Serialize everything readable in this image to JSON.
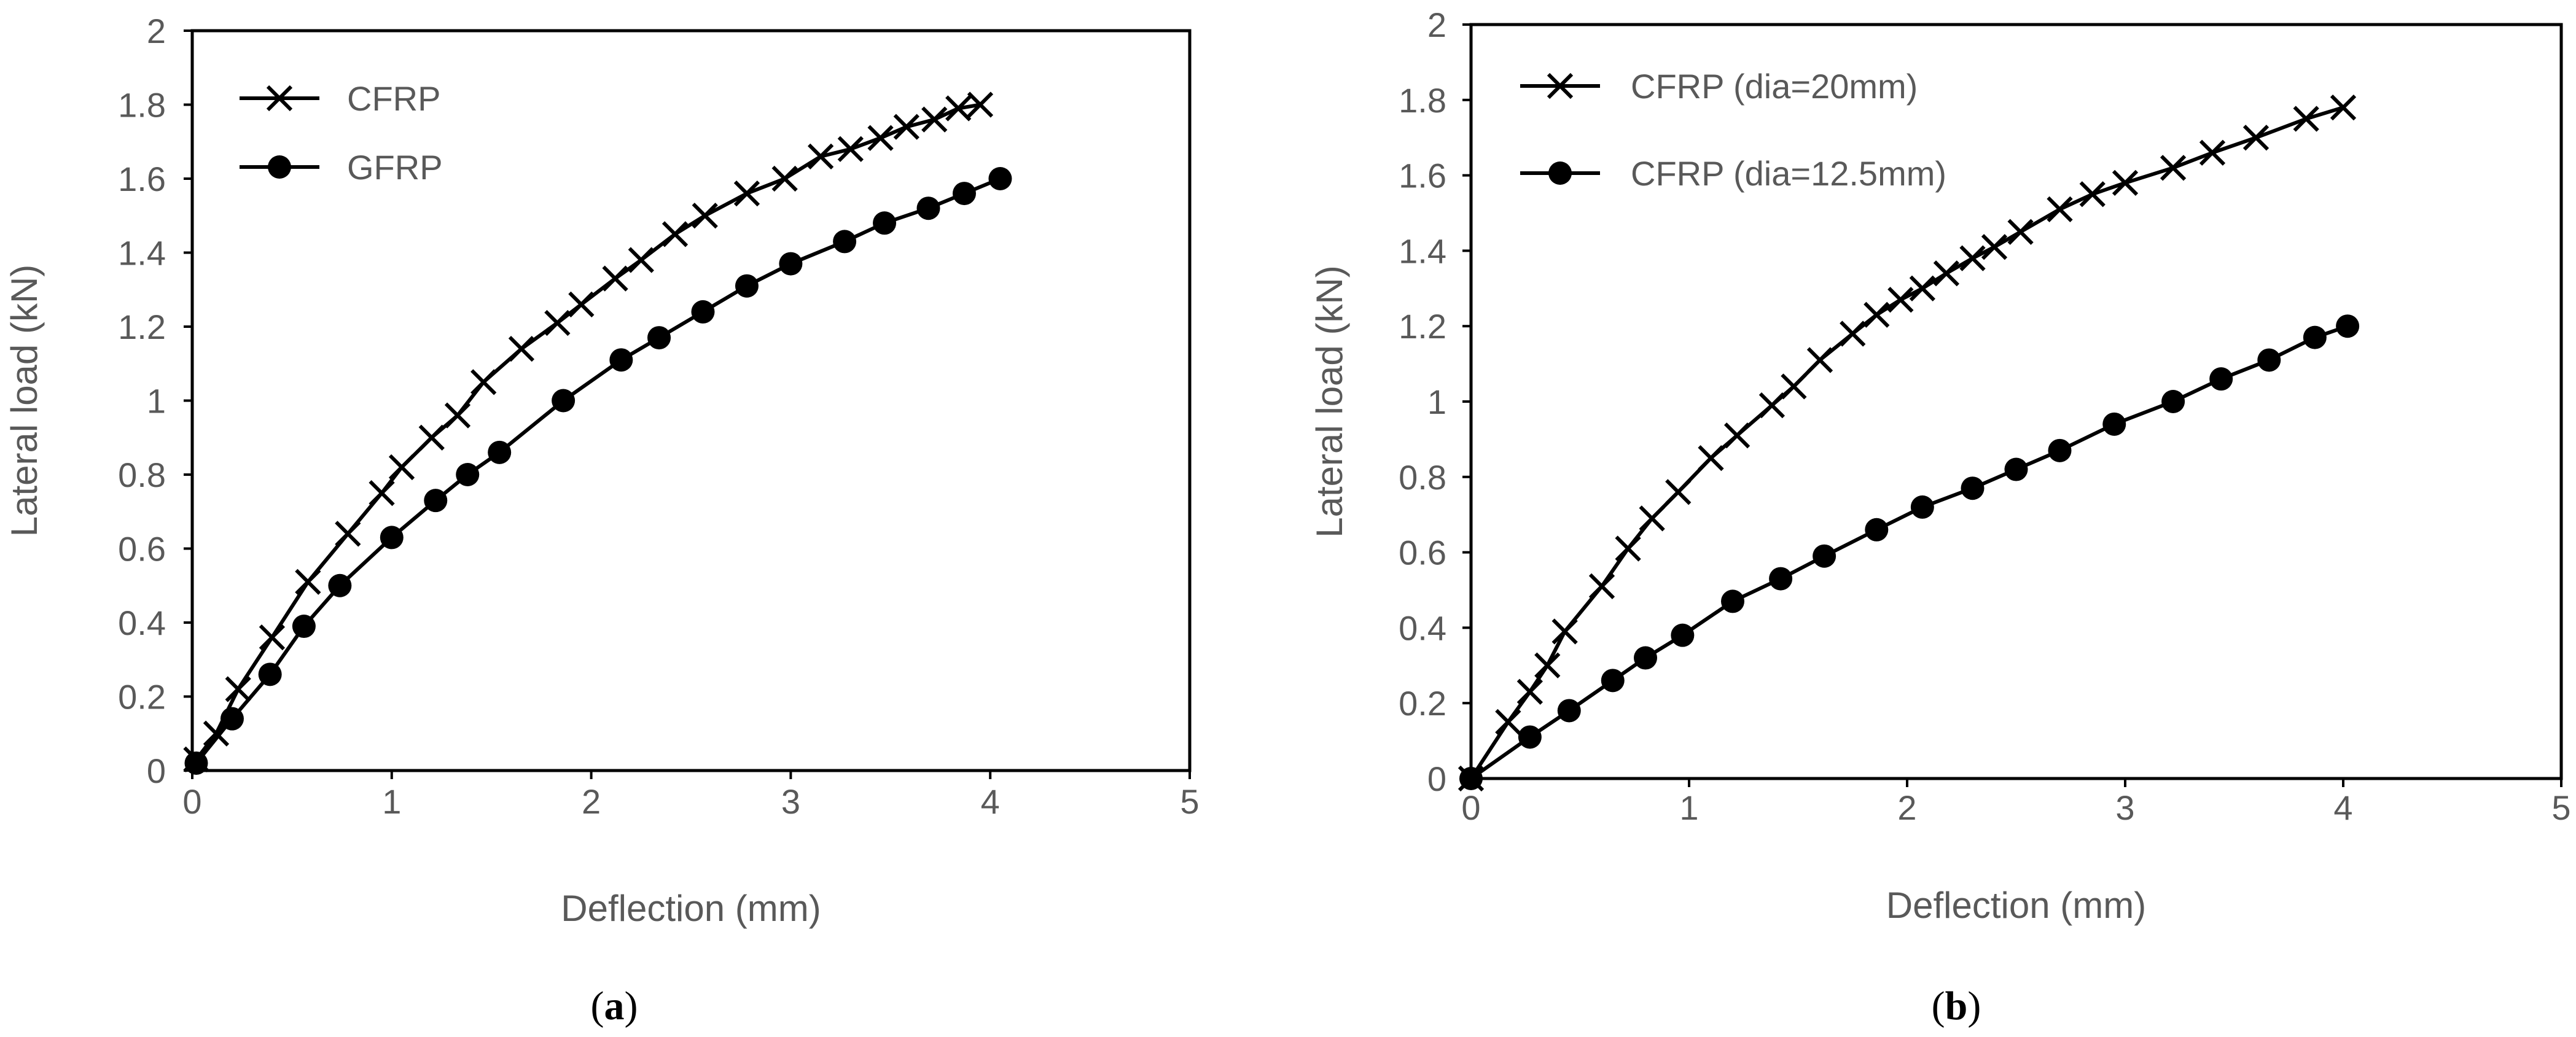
{
  "chart_data": [
    {
      "type": "line",
      "panel": "a",
      "caption": {
        "open": "(",
        "label": "a",
        "close": ")"
      },
      "xlabel": "Deflection (mm)",
      "ylabel": "Lateral load (kN)",
      "xlim": [
        0,
        5
      ],
      "ylim": [
        0,
        2
      ],
      "xticks": [
        0,
        1,
        2,
        3,
        4,
        5
      ],
      "yticks": [
        0,
        0.2,
        0.4,
        0.6,
        0.8,
        1,
        1.2,
        1.4,
        1.6,
        1.8,
        2
      ],
      "ytick_labels": [
        "0",
        "0.2",
        "0.4",
        "0.6",
        "0.8",
        "1",
        "1.2",
        "1.4",
        "1.6",
        "1.8",
        "2"
      ],
      "grid": false,
      "legend_position": "top-left",
      "series": [
        {
          "name": "CFRP",
          "marker": "x",
          "color": "#000000",
          "x": [
            0.02,
            0.12,
            0.23,
            0.4,
            0.58,
            0.78,
            0.95,
            1.05,
            1.2,
            1.33,
            1.46,
            1.65,
            1.83,
            1.95,
            2.12,
            2.25,
            2.42,
            2.57,
            2.78,
            2.97,
            3.15,
            3.3,
            3.45,
            3.58,
            3.72,
            3.84,
            3.95
          ],
          "y": [
            0.03,
            0.1,
            0.22,
            0.36,
            0.51,
            0.64,
            0.75,
            0.82,
            0.9,
            0.96,
            1.05,
            1.14,
            1.21,
            1.26,
            1.33,
            1.38,
            1.45,
            1.5,
            1.56,
            1.6,
            1.66,
            1.68,
            1.71,
            1.74,
            1.76,
            1.79,
            1.8
          ]
        },
        {
          "name": "GFRP",
          "marker": "circle",
          "color": "#000000",
          "x": [
            0.02,
            0.2,
            0.39,
            0.56,
            0.74,
            1.0,
            1.22,
            1.38,
            1.54,
            1.86,
            2.15,
            2.34,
            2.56,
            2.78,
            3.0,
            3.27,
            3.47,
            3.69,
            3.87,
            4.05
          ],
          "y": [
            0.02,
            0.14,
            0.26,
            0.39,
            0.5,
            0.63,
            0.73,
            0.8,
            0.86,
            1.0,
            1.11,
            1.17,
            1.24,
            1.31,
            1.37,
            1.43,
            1.48,
            1.52,
            1.56,
            1.6
          ]
        }
      ]
    },
    {
      "type": "line",
      "panel": "b",
      "caption": {
        "open": "(",
        "label": "b",
        "close": ")"
      },
      "xlabel": "Deflection (mm)",
      "ylabel": "Lateral load (kN)",
      "xlim": [
        0,
        5
      ],
      "ylim": [
        0,
        2
      ],
      "xticks": [
        0,
        1,
        2,
        3,
        4,
        5
      ],
      "yticks": [
        0,
        0.2,
        0.4,
        0.6,
        0.8,
        1,
        1.2,
        1.4,
        1.6,
        1.8,
        2
      ],
      "ytick_labels": [
        "0",
        "0.2",
        "0.4",
        "0.6",
        "0.8",
        "1",
        "1.2",
        "1.4",
        "1.6",
        "1.8",
        "2"
      ],
      "grid": false,
      "legend_position": "top-left",
      "series": [
        {
          "name": "CFRP (dia=20mm)",
          "marker": "x",
          "color": "#000000",
          "x": [
            0.0,
            0.17,
            0.27,
            0.35,
            0.43,
            0.6,
            0.72,
            0.83,
            0.95,
            1.1,
            1.22,
            1.38,
            1.48,
            1.6,
            1.75,
            1.86,
            1.97,
            2.07,
            2.18,
            2.3,
            2.4,
            2.52,
            2.7,
            2.85,
            3.0,
            3.22,
            3.4,
            3.6,
            3.83,
            4.0
          ],
          "y": [
            0.0,
            0.15,
            0.23,
            0.3,
            0.39,
            0.51,
            0.61,
            0.69,
            0.76,
            0.85,
            0.91,
            0.99,
            1.04,
            1.11,
            1.18,
            1.23,
            1.27,
            1.3,
            1.34,
            1.38,
            1.41,
            1.45,
            1.51,
            1.55,
            1.58,
            1.62,
            1.66,
            1.7,
            1.75,
            1.78
          ]
        },
        {
          "name": "CFRP (dia=12.5mm)",
          "marker": "circle",
          "color": "#000000",
          "x": [
            0.0,
            0.27,
            0.45,
            0.65,
            0.8,
            0.97,
            1.2,
            1.42,
            1.62,
            1.86,
            2.07,
            2.3,
            2.5,
            2.7,
            2.95,
            3.22,
            3.44,
            3.66,
            3.87,
            4.02
          ],
          "y": [
            0.0,
            0.11,
            0.18,
            0.26,
            0.32,
            0.38,
            0.47,
            0.53,
            0.59,
            0.66,
            0.72,
            0.77,
            0.82,
            0.87,
            0.94,
            1.0,
            1.06,
            1.11,
            1.17,
            1.2
          ]
        }
      ]
    }
  ]
}
